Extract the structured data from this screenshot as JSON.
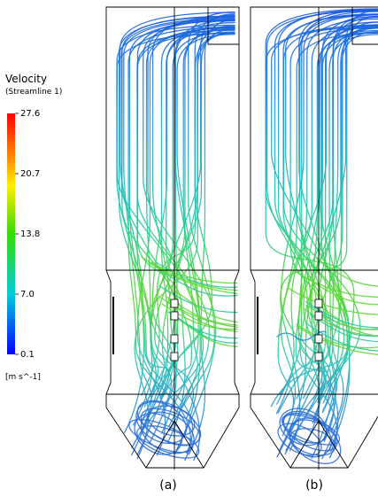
{
  "legend": {
    "title": "Velocity",
    "subtitle": "(Streamline 1)",
    "ticks": [
      "27.6",
      "20.7",
      "13.8",
      "7.0",
      "0.1"
    ],
    "units": "[m s^-1]"
  },
  "panels": [
    {
      "label": "(a)"
    },
    {
      "label": "(b)"
    }
  ]
}
